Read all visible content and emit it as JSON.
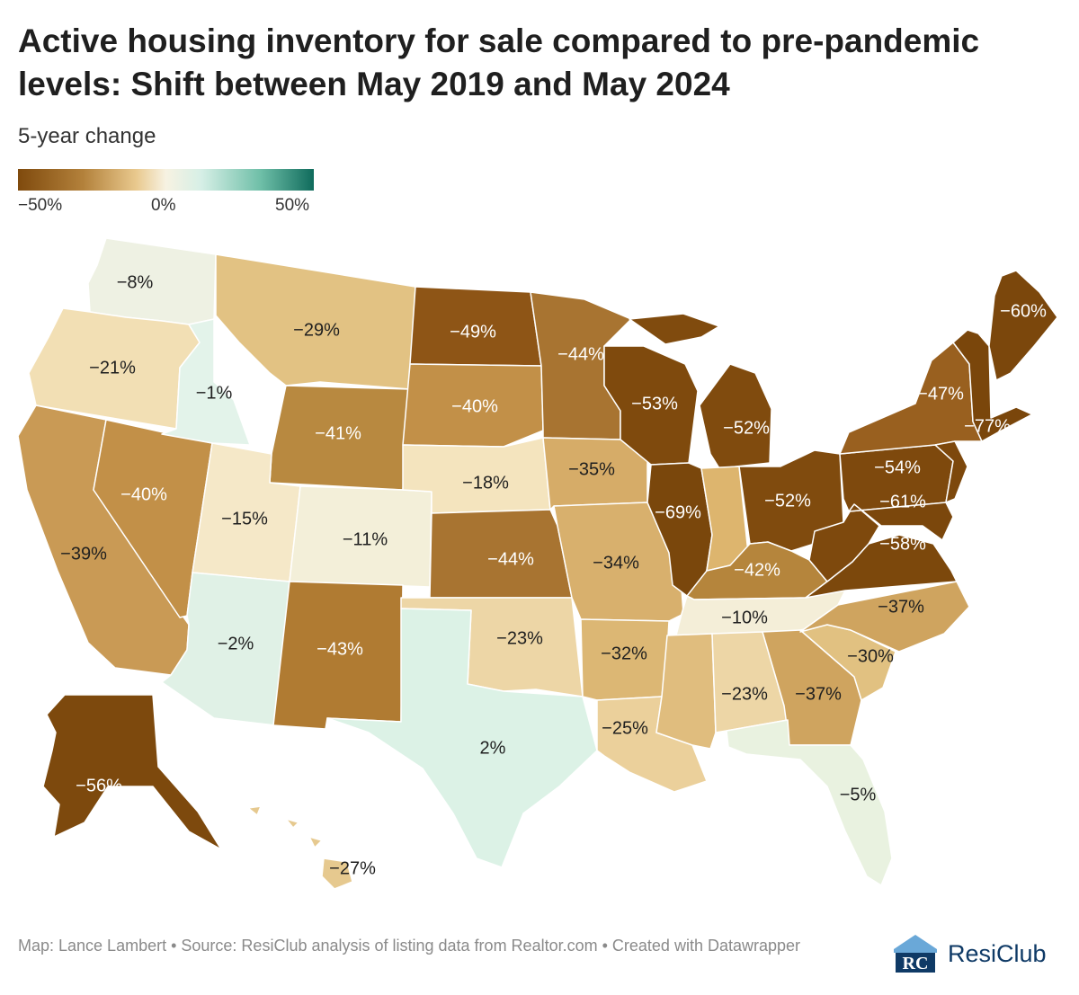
{
  "title": "Active housing inventory for sale compared to pre-pandemic levels: Shift between May 2019 and May 2024",
  "legend": {
    "title": "5-year change",
    "ticks": [
      "−50%",
      "0%",
      "50%"
    ],
    "colors": {
      "low": "#7f4a0d",
      "mid": "#f7f2e2",
      "high": "#0f6b5c"
    }
  },
  "states": [
    {
      "code": "WA",
      "name": "Washington",
      "label": "−8%",
      "value": -8,
      "color": "#eef1e3"
    },
    {
      "code": "OR",
      "name": "Oregon",
      "label": "−21%",
      "value": -21,
      "color": "#f2dfb4"
    },
    {
      "code": "CA",
      "name": "California",
      "label": "−39%",
      "value": -39,
      "color": "#c99a55"
    },
    {
      "code": "NV",
      "name": "Nevada",
      "label": "−40%",
      "value": -40,
      "color": "#c29048"
    },
    {
      "code": "ID",
      "name": "Idaho",
      "label": "−1%",
      "value": -1,
      "color": "#e3f3ea"
    },
    {
      "code": "MT",
      "name": "Montana",
      "label": "−29%",
      "value": -29,
      "color": "#e2c283"
    },
    {
      "code": "WY",
      "name": "Wyoming",
      "label": "−41%",
      "value": -41,
      "color": "#b88940"
    },
    {
      "code": "UT",
      "name": "Utah",
      "label": "−15%",
      "value": -15,
      "color": "#f5e8c8"
    },
    {
      "code": "CO",
      "name": "Colorado",
      "label": "−11%",
      "value": -11,
      "color": "#f3efd9"
    },
    {
      "code": "AZ",
      "name": "Arizona",
      "label": "−2%",
      "value": -2,
      "color": "#e0f1e6"
    },
    {
      "code": "NM",
      "name": "New Mexico",
      "label": "−43%",
      "value": -43,
      "color": "#b07b32"
    },
    {
      "code": "ND",
      "name": "North Dakota",
      "label": "−49%",
      "value": -49,
      "color": "#8e5516"
    },
    {
      "code": "SD",
      "name": "South Dakota",
      "label": "−40%",
      "value": -40,
      "color": "#c29048"
    },
    {
      "code": "NE",
      "name": "Nebraska",
      "label": "−18%",
      "value": -18,
      "color": "#f4e4be"
    },
    {
      "code": "KS",
      "name": "Kansas",
      "label": "−44%",
      "value": -44,
      "color": "#a87431"
    },
    {
      "code": "OK",
      "name": "Oklahoma",
      "label": "−23%",
      "value": -23,
      "color": "#edd6a6"
    },
    {
      "code": "TX",
      "name": "Texas",
      "label": "2%",
      "value": 2,
      "color": "#dcf2e6"
    },
    {
      "code": "MN",
      "name": "Minnesota",
      "label": "−44%",
      "value": -44,
      "color": "#a87431"
    },
    {
      "code": "IA",
      "name": "Iowa",
      "label": "−35%",
      "value": -35,
      "color": "#d6ac68"
    },
    {
      "code": "MO",
      "name": "Missouri",
      "label": "−34%",
      "value": -34,
      "color": "#d8b06d"
    },
    {
      "code": "AR",
      "name": "Arkansas",
      "label": "−32%",
      "value": -32,
      "color": "#dcb774"
    },
    {
      "code": "LA",
      "name": "Louisiana",
      "label": "−25%",
      "value": -25,
      "color": "#ebd09b"
    },
    {
      "code": "WI",
      "name": "Wisconsin",
      "label": "−53%",
      "value": -53,
      "color": "#7f4a0d"
    },
    {
      "code": "IL",
      "name": "Illinois",
      "label": "−69%",
      "value": -69,
      "color": "#7a470c"
    },
    {
      "code": "MI",
      "name": "Michigan",
      "label": "−52%",
      "value": -52,
      "color": "#804b0e"
    },
    {
      "code": "IN",
      "name": "Indiana",
      "label": "",
      "value": null,
      "color": "#ddb56e"
    },
    {
      "code": "OH",
      "name": "Ohio",
      "label": "−52%",
      "value": -52,
      "color": "#804b0e"
    },
    {
      "code": "KY",
      "name": "Kentucky",
      "label": "−42%",
      "value": -42,
      "color": "#b5853c"
    },
    {
      "code": "TN",
      "name": "Tennessee",
      "label": "−10%",
      "value": -10,
      "color": "#f4eed8"
    },
    {
      "code": "MS",
      "name": "Mississippi",
      "label": "",
      "value": null,
      "color": "#e0bd7e"
    },
    {
      "code": "AL",
      "name": "Alabama",
      "label": "−23%",
      "value": -23,
      "color": "#edd6a6"
    },
    {
      "code": "GA",
      "name": "Georgia",
      "label": "−37%",
      "value": -37,
      "color": "#cfa45f"
    },
    {
      "code": "FL",
      "name": "Florida",
      "label": "−5%",
      "value": -5,
      "color": "#e9f2e0"
    },
    {
      "code": "SC",
      "name": "South Carolina",
      "label": "−30%",
      "value": -30,
      "color": "#e1c181"
    },
    {
      "code": "NC",
      "name": "North Carolina",
      "label": "−37%",
      "value": -37,
      "color": "#cfa45f"
    },
    {
      "code": "VA",
      "name": "Virginia",
      "label": "−58%",
      "value": -58,
      "color": "#7c480c"
    },
    {
      "code": "WV",
      "name": "West Virginia",
      "label": "",
      "value": null,
      "color": "#7e490d"
    },
    {
      "code": "PA",
      "name": "Pennsylvania",
      "label": "−54%",
      "value": -54,
      "color": "#7e490d"
    },
    {
      "code": "MD",
      "name": "Maryland",
      "label": "−61%",
      "value": -61,
      "color": "#7b470c"
    },
    {
      "code": "NY",
      "name": "New York",
      "label": "−47%",
      "value": -47,
      "color": "#99601f"
    },
    {
      "code": "NJ",
      "name": "New Jersey",
      "label": "",
      "value": null,
      "color": "#7d480c"
    },
    {
      "code": "NE-NEW",
      "name": "New England",
      "label": "−77%",
      "value": -77,
      "color": "#7a460b"
    },
    {
      "code": "ME",
      "name": "Maine",
      "label": "−60%",
      "value": -60,
      "color": "#7b470c"
    },
    {
      "code": "AK",
      "name": "Alaska",
      "label": "−56%",
      "value": -56,
      "color": "#7d490d"
    },
    {
      "code": "HI",
      "name": "Hawaii",
      "label": "−27%",
      "value": -27,
      "color": "#e6c98f"
    }
  ],
  "footer": "Map: Lance Lambert • Source: ResiClub analysis of listing data from Realtor.com • Created with Datawrapper",
  "brand": {
    "name": "ResiClub",
    "mark_letters": "RC",
    "color": "#0f3a66"
  }
}
